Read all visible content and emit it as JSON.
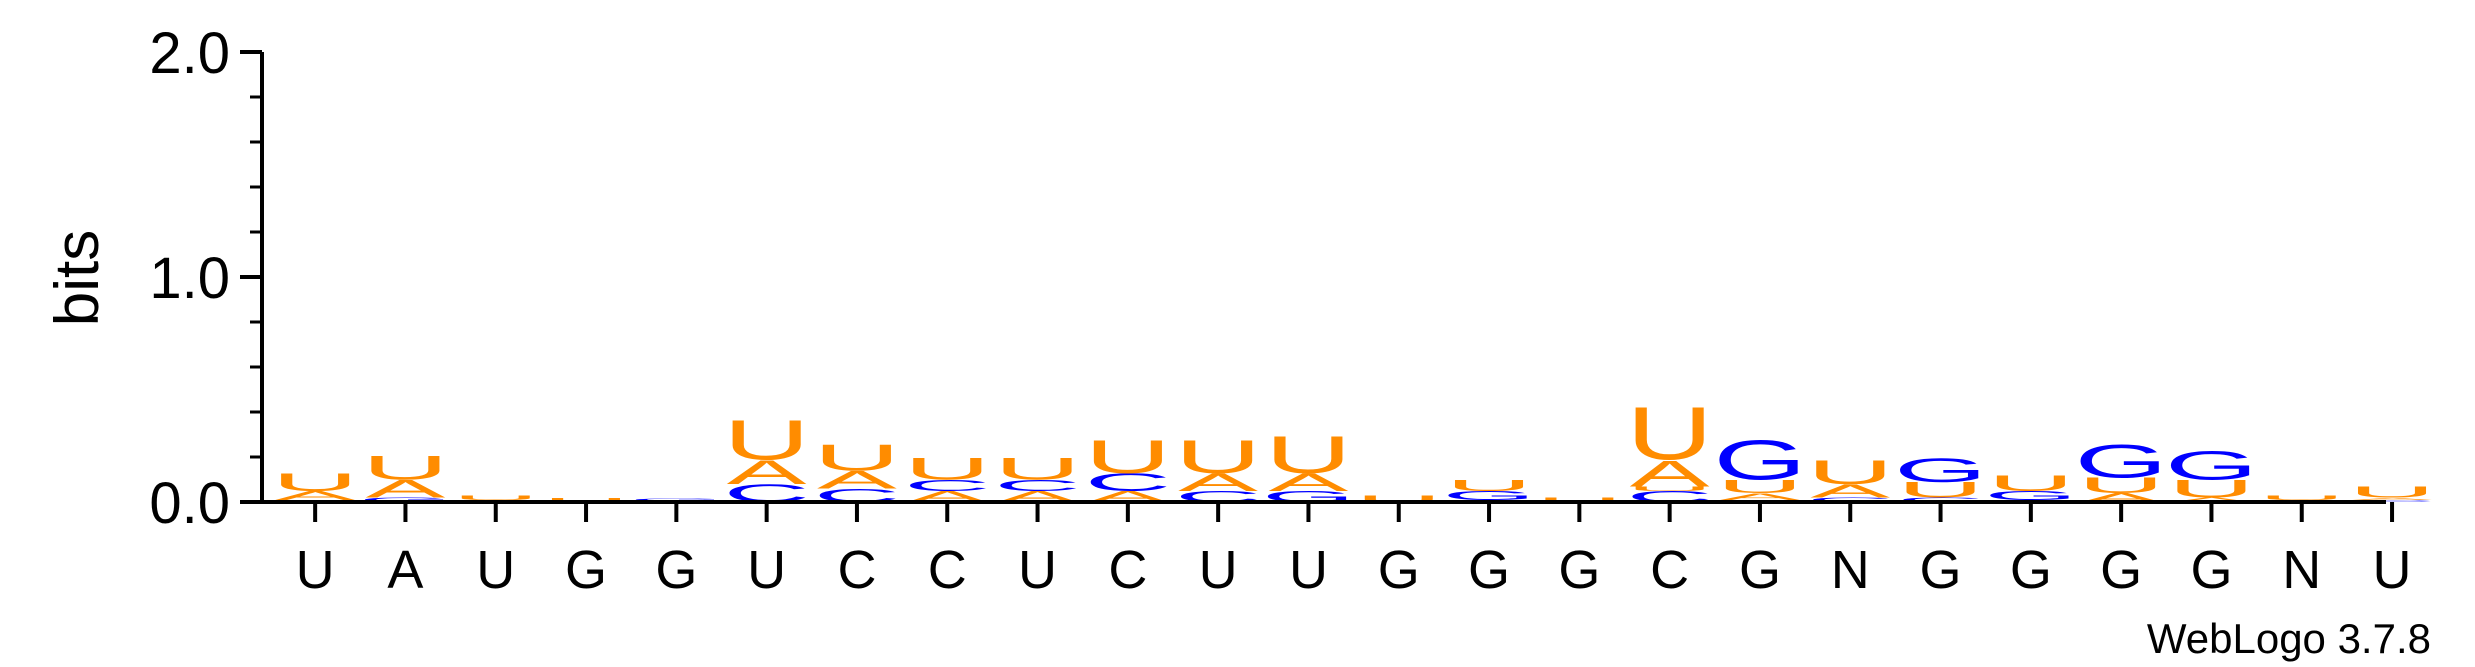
{
  "chart_data": {
    "type": "sequence-logo",
    "ylabel": "bits",
    "ylim": [
      0,
      2.0
    ],
    "yticks": [
      {
        "value": 0.0,
        "label": "0.0"
      },
      {
        "value": 1.0,
        "label": "1.0"
      },
      {
        "value": 2.0,
        "label": "2.0"
      }
    ],
    "x_labels": [
      "U",
      "A",
      "U",
      "G",
      "G",
      "U",
      "C",
      "C",
      "U",
      "C",
      "U",
      "U",
      "G",
      "G",
      "G",
      "C",
      "G",
      "N",
      "G",
      "G",
      "G",
      "G",
      "N",
      "U"
    ],
    "colors": {
      "U": "#ff8c00",
      "A": "#ff8c00",
      "C": "#0000ff",
      "G": "#0000ff"
    },
    "credit": "WebLogo 3.7.8",
    "positions": [
      [
        {
          "letter": "C",
          "bits": 0.01
        },
        {
          "letter": "A",
          "bits": 0.04
        },
        {
          "letter": "U",
          "bits": 0.08
        }
      ],
      [
        {
          "letter": "G",
          "bits": 0.02
        },
        {
          "letter": "A",
          "bits": 0.08
        },
        {
          "letter": "U",
          "bits": 0.11
        }
      ],
      [
        {
          "letter": "G",
          "bits": 0.008
        },
        {
          "letter": "U",
          "bits": 0.02
        }
      ],
      [
        {
          "letter": "G",
          "bits": 0.005
        },
        {
          "letter": "U",
          "bits": 0.015
        }
      ],
      [
        {
          "letter": "A",
          "bits": 0.005
        },
        {
          "letter": "G",
          "bits": 0.012
        }
      ],
      [
        {
          "letter": "C",
          "bits": 0.08
        },
        {
          "letter": "A",
          "bits": 0.11
        },
        {
          "letter": "U",
          "bits": 0.18
        }
      ],
      [
        {
          "letter": "C",
          "bits": 0.06
        },
        {
          "letter": "A",
          "bits": 0.08
        },
        {
          "letter": "U",
          "bits": 0.12
        }
      ],
      [
        {
          "letter": "A",
          "bits": 0.05
        },
        {
          "letter": "C",
          "bits": 0.05
        },
        {
          "letter": "U",
          "bits": 0.1
        }
      ],
      [
        {
          "letter": "A",
          "bits": 0.05
        },
        {
          "letter": "C",
          "bits": 0.05
        },
        {
          "letter": "U",
          "bits": 0.1
        }
      ],
      [
        {
          "letter": "A",
          "bits": 0.05
        },
        {
          "letter": "C",
          "bits": 0.08
        },
        {
          "letter": "U",
          "bits": 0.15
        }
      ],
      [
        {
          "letter": "C",
          "bits": 0.05
        },
        {
          "letter": "A",
          "bits": 0.08
        },
        {
          "letter": "U",
          "bits": 0.15
        }
      ],
      [
        {
          "letter": "G",
          "bits": 0.05
        },
        {
          "letter": "A",
          "bits": 0.08
        },
        {
          "letter": "U",
          "bits": 0.17
        }
      ],
      [
        {
          "letter": "U",
          "bits": 0.03
        }
      ],
      [
        {
          "letter": "U",
          "bits": 0.01
        },
        {
          "letter": "G",
          "bits": 0.04
        },
        {
          "letter": "U",
          "bits": 0.05
        }
      ],
      [
        {
          "letter": "U",
          "bits": 0.02
        }
      ],
      [
        {
          "letter": "C",
          "bits": 0.05
        },
        {
          "letter": "U",
          "bits": 0.02
        },
        {
          "letter": "A",
          "bits": 0.12
        },
        {
          "letter": "U",
          "bits": 0.24
        }
      ],
      [
        {
          "letter": "C",
          "bits": 0.01
        },
        {
          "letter": "A",
          "bits": 0.03
        },
        {
          "letter": "U",
          "bits": 0.06
        },
        {
          "letter": "G",
          "bits": 0.18
        }
      ],
      [
        {
          "letter": "C",
          "bits": 0.02
        },
        {
          "letter": "A",
          "bits": 0.06
        },
        {
          "letter": "U",
          "bits": 0.11
        }
      ],
      [
        {
          "letter": "C",
          "bits": 0.02
        },
        {
          "letter": "U",
          "bits": 0.07
        },
        {
          "letter": "G",
          "bits": 0.11
        }
      ],
      [
        {
          "letter": "A",
          "bits": 0.01
        },
        {
          "letter": "G",
          "bits": 0.04
        },
        {
          "letter": "U",
          "bits": 0.07
        }
      ],
      [
        {
          "letter": "A",
          "bits": 0.04
        },
        {
          "letter": "U",
          "bits": 0.07
        },
        {
          "letter": "G",
          "bits": 0.15
        }
      ],
      [
        {
          "letter": "A",
          "bits": 0.02
        },
        {
          "letter": "U",
          "bits": 0.08
        },
        {
          "letter": "G",
          "bits": 0.13
        }
      ],
      [
        {
          "letter": "C",
          "bits": 0.01
        },
        {
          "letter": "U",
          "bits": 0.02
        }
      ],
      [
        {
          "letter": "C",
          "bits": 0.01
        },
        {
          "letter": "A",
          "bits": 0.01
        },
        {
          "letter": "U",
          "bits": 0.05
        }
      ]
    ]
  }
}
